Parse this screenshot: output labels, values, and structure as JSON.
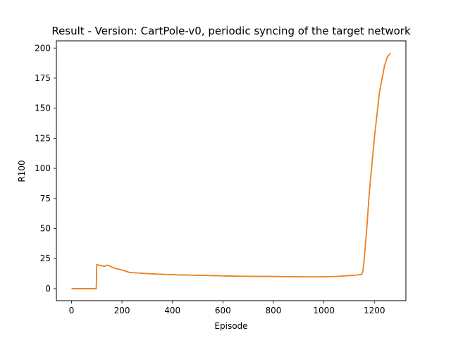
{
  "chart_data": {
    "type": "line",
    "title": "Result - Version: CartPole-v0, periodic syncing of the target network",
    "xlabel": "Episode",
    "ylabel": "R100",
    "xlim": [
      -60,
      1325
    ],
    "ylim": [
      -10,
      206
    ],
    "x_ticks": [
      0,
      200,
      400,
      600,
      800,
      1000,
      1200
    ],
    "y_ticks": [
      0,
      25,
      50,
      75,
      100,
      125,
      150,
      175,
      200
    ],
    "grid": false,
    "legend": "none",
    "series": [
      {
        "color": "#1f77b4",
        "x": [
          0,
          98,
          99,
          100,
          120,
          130,
          140,
          150,
          170,
          200,
          230,
          250,
          300,
          350,
          400,
          450,
          500,
          550,
          600,
          650,
          700,
          750,
          800,
          850,
          900,
          950,
          1000,
          1050,
          1100,
          1130,
          1150,
          1155,
          1160,
          1170,
          1180,
          1200,
          1220,
          1240,
          1250,
          1260,
          1265
        ],
        "y": [
          0,
          0,
          10,
          20,
          19,
          18.5,
          19.5,
          19,
          17,
          15.5,
          13.5,
          13.2,
          12.5,
          12,
          11.6,
          11.3,
          11.1,
          10.9,
          10.6,
          10.4,
          10.3,
          10.2,
          10.1,
          10.0,
          9.9,
          9.8,
          9.9,
          10.2,
          10.8,
          11.3,
          11.8,
          15,
          25,
          50,
          80,
          125,
          163,
          185,
          192,
          195,
          195.5
        ]
      },
      {
        "color": "#ff7f0e",
        "x": [
          0,
          98,
          99,
          100,
          120,
          130,
          140,
          150,
          170,
          200,
          230,
          250,
          300,
          350,
          400,
          450,
          500,
          550,
          600,
          650,
          700,
          750,
          800,
          850,
          900,
          950,
          1000,
          1050,
          1100,
          1130,
          1150,
          1155,
          1160,
          1170,
          1180,
          1200,
          1220,
          1240,
          1250,
          1260,
          1265
        ],
        "y": [
          0,
          0,
          10,
          20,
          19,
          18.5,
          19.5,
          19,
          17,
          15.5,
          13.5,
          13.2,
          12.5,
          12,
          11.6,
          11.3,
          11.1,
          10.9,
          10.6,
          10.4,
          10.3,
          10.2,
          10.1,
          10.0,
          9.9,
          9.8,
          9.9,
          10.2,
          10.8,
          11.3,
          11.8,
          15,
          25,
          50,
          80,
          125,
          163,
          185,
          192,
          195,
          195.5
        ]
      }
    ]
  }
}
